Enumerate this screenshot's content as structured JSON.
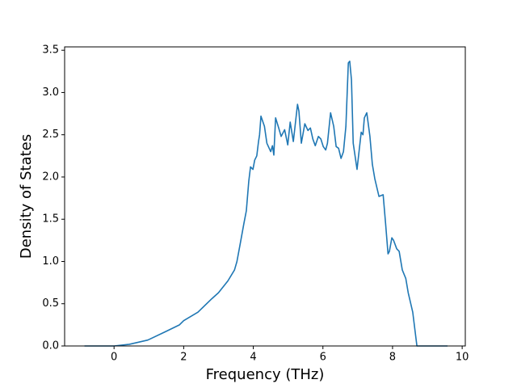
{
  "chart_data": {
    "type": "line",
    "xlabel": "Frequency (THz)",
    "ylabel": "Density of States",
    "xlim": [
      -1.42,
      10.09
    ],
    "ylim": [
      0,
      3.54
    ],
    "xticks": [
      0,
      2,
      4,
      6,
      8,
      10
    ],
    "yticks": [
      {
        "value": 0,
        "label": "0.0"
      },
      {
        "value": 0.5,
        "label": "0.5"
      },
      {
        "value": 1,
        "label": "1.0"
      },
      {
        "value": 1.5,
        "label": "1.5"
      },
      {
        "value": 2,
        "label": "2.0"
      },
      {
        "value": 2.5,
        "label": "2.5"
      },
      {
        "value": 3,
        "label": "3.0"
      },
      {
        "value": 3.5,
        "label": "3.5"
      }
    ],
    "grid": false,
    "series": [
      {
        "color": "#1f77b4",
        "x": [
          -0.85,
          0,
          0.44,
          0.97,
          1.48,
          1.88,
          2.0,
          2.41,
          2.81,
          3.0,
          3.27,
          3.46,
          3.53,
          3.62,
          3.73,
          3.8,
          3.87,
          3.92,
          3.99,
          4.04,
          4.1,
          4.15,
          4.18,
          4.22,
          4.32,
          4.39,
          4.5,
          4.55,
          4.59,
          4.64,
          4.73,
          4.8,
          4.9,
          4.99,
          5.06,
          5.15,
          5.27,
          5.31,
          5.38,
          5.48,
          5.57,
          5.64,
          5.71,
          5.78,
          5.87,
          5.94,
          6.01,
          6.08,
          6.13,
          6.22,
          6.31,
          6.38,
          6.45,
          6.52,
          6.59,
          6.66,
          6.73,
          6.77,
          6.82,
          6.87,
          6.98,
          7.1,
          7.15,
          7.19,
          7.26,
          7.35,
          7.42,
          7.49,
          7.61,
          7.73,
          7.8,
          7.87,
          7.91,
          7.98,
          8.03,
          8.12,
          8.19,
          8.28,
          8.38,
          8.45,
          8.58,
          8.7,
          9.58
        ],
        "values": [
          0,
          0,
          0.02,
          0.07,
          0.17,
          0.25,
          0.3,
          0.4,
          0.56,
          0.63,
          0.77,
          0.9,
          1.0,
          1.2,
          1.45,
          1.6,
          1.95,
          2.12,
          2.09,
          2.2,
          2.25,
          2.42,
          2.5,
          2.72,
          2.6,
          2.4,
          2.3,
          2.37,
          2.26,
          2.7,
          2.58,
          2.48,
          2.56,
          2.38,
          2.65,
          2.42,
          2.86,
          2.78,
          2.4,
          2.63,
          2.55,
          2.58,
          2.45,
          2.37,
          2.48,
          2.45,
          2.36,
          2.32,
          2.4,
          2.76,
          2.6,
          2.36,
          2.34,
          2.22,
          2.3,
          2.6,
          3.35,
          3.37,
          3.15,
          2.4,
          2.09,
          2.53,
          2.5,
          2.7,
          2.76,
          2.48,
          2.15,
          1.98,
          1.77,
          1.79,
          1.45,
          1.09,
          1.12,
          1.28,
          1.25,
          1.15,
          1.12,
          0.9,
          0.8,
          0.63,
          0.4,
          0,
          0
        ]
      }
    ]
  }
}
